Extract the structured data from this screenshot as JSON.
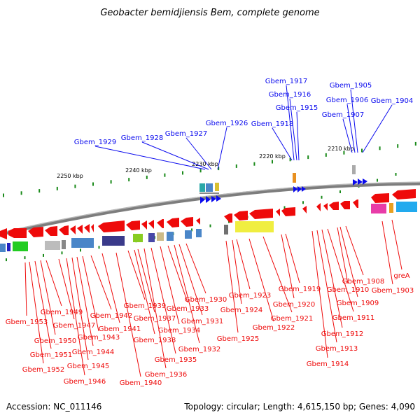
{
  "title": "Geobacter bemidjiensis Bem, complete genome",
  "footer": {
    "accession": "Accession: NC_011146",
    "topology": "Topology: circular; Length: 4,615,150 bp; Genes: 4,090"
  },
  "scale_labels": [
    "2250 kbp",
    "2240 kbp",
    "2230 kbp",
    "2220 kbp",
    "2210 kbp"
  ],
  "colors": {
    "forward_strand": "#0a0aee",
    "reverse_strand": "#ee0a0a",
    "backbone": "#7d7d7d",
    "tick": "#1a8a1a"
  },
  "top_labels": [
    "Gbem_1929",
    "Gbem_1928",
    "Gbem_1927",
    "Gbem_1926",
    "Gbem_1918",
    "Gbem_1917",
    "Gbem_1916",
    "Gbem_1915",
    "Gbem_1907",
    "Gbem_1906",
    "Gbem_1905",
    "Gbem_1904"
  ],
  "bottom_labels": [
    "Gbem_1953",
    "Gbem_1952",
    "Gbem_1951",
    "Gbem_1950",
    "Gbem_1949",
    "Gbem_1947",
    "Gbem_1946",
    "Gbem_1945",
    "Gbem_1944",
    "Gbem_1943",
    "Gbem_1942",
    "Gbem_1941",
    "Gbem_1940",
    "Gbem_1939",
    "Gbem_1938",
    "Gbem_1937",
    "Gbem_1936",
    "Gbem_1935",
    "Gbem_1934",
    "Gbem_1933",
    "Gbem_1932",
    "Gbem_1931",
    "Gbem_1930",
    "Gbem_1925",
    "Gbem_1924",
    "Gbem_1923",
    "Gbem_1922",
    "Gbem_1921",
    "Gbem_1920",
    "Gbem_1919",
    "Gbem_1914",
    "Gbem_1913",
    "Gbem_1912",
    "Gbem_1911",
    "Gbem_1910",
    "Gbem_1909",
    "Gbem_1908",
    "Gbem_1903",
    "greA"
  ]
}
